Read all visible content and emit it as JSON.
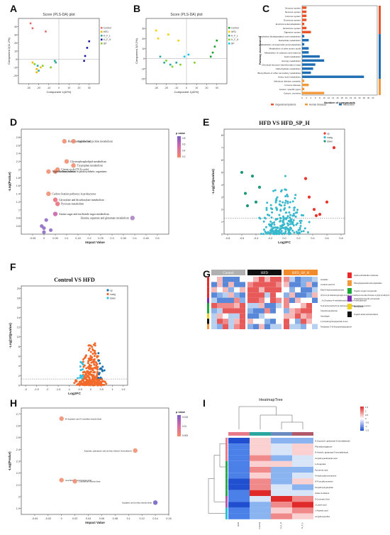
{
  "panel_labels": [
    "A",
    "B",
    "C",
    "D",
    "E",
    "F",
    "G",
    "H",
    "I"
  ],
  "chart_data": [
    {
      "id": "A",
      "type": "scatter",
      "title": "Score (PLS-DA) plot",
      "xlabel": "Component 1(42%)",
      "ylabel": "Component 2(11.2%)",
      "xlim": [
        -40,
        40
      ],
      "ylim": [
        -30,
        50
      ],
      "xticks": [
        "-30",
        "-20",
        "-10",
        "0",
        "10",
        "20",
        "30"
      ],
      "yticks": [
        "40",
        "30",
        "20",
        "10",
        "0",
        "-10",
        "-20"
      ],
      "legend": [
        "Control",
        "HFD",
        "H_F_L",
        "H_F_H",
        "SP"
      ],
      "colors": [
        "#e36b6b",
        "#f5b800",
        "#2aa7a0",
        "#1a1aa0",
        "#7fcf2b"
      ],
      "series": [
        {
          "name": "Control",
          "points": [
            [
              -28,
              44
            ],
            [
              -26,
              38
            ],
            [
              -13,
              34
            ]
          ]
        },
        {
          "name": "HFD",
          "points": [
            [
              -26,
              -4
            ],
            [
              -22,
              -12
            ],
            [
              -18,
              -10
            ],
            [
              -22,
              -16
            ]
          ]
        },
        {
          "name": "H_F_L",
          "points": [
            [
              -21,
              -8
            ],
            [
              -20,
              -14
            ],
            [
              -4,
              -2
            ],
            [
              -3,
              -4
            ]
          ]
        },
        {
          "name": "H_F_H",
          "points": [
            [
              28,
              14
            ],
            [
              30,
              22
            ],
            [
              26,
              4
            ],
            [
              25,
              -2
            ]
          ]
        },
        {
          "name": "SP",
          "points": [
            [
              -24,
              -6
            ],
            [
              -16,
              -8
            ],
            [
              -8,
              -10
            ]
          ]
        }
      ]
    },
    {
      "id": "B",
      "type": "scatter",
      "title": "Score (PLS-DA) plot",
      "xlabel": "Component 1(42%)",
      "ylabel": "Component 2(9.2%)",
      "xlim": [
        -40,
        40
      ],
      "ylim": [
        -25,
        40
      ],
      "xticks": [
        "-30",
        "-20",
        "-10",
        "0",
        "10",
        "20",
        "30"
      ],
      "yticks": [
        "30",
        "20",
        "10",
        "0",
        "-10",
        "-20"
      ],
      "legend": [
        "Control",
        "HFD",
        "H_F_L",
        "H_F_H",
        "SP"
      ],
      "colors": [
        "#1a9e2a",
        "#f5d000",
        "#2aa7a0",
        "#7fcf2b",
        "#00c8e8"
      ],
      "series": [
        {
          "name": "Control",
          "points": [
            [
              28,
              12
            ],
            [
              30,
              18
            ],
            [
              26,
              6
            ],
            [
              24,
              2
            ]
          ]
        },
        {
          "name": "HFD",
          "points": [
            [
              -30,
              28
            ],
            [
              -28,
              20
            ],
            [
              -18,
              24
            ],
            [
              -8,
              18
            ]
          ]
        },
        {
          "name": "H_F_L",
          "points": [
            [
              -26,
              2
            ],
            [
              -22,
              -4
            ],
            [
              -16,
              -6
            ],
            [
              -10,
              -4
            ]
          ]
        },
        {
          "name": "H_F_H",
          "points": [
            [
              -20,
              -2
            ],
            [
              -14,
              -8
            ],
            [
              -6,
              -6
            ],
            [
              8,
              -4
            ]
          ]
        },
        {
          "name": "SP",
          "points": [
            [
              -2,
              2
            ],
            [
              2,
              4
            ]
          ]
        }
      ]
    },
    {
      "id": "C",
      "type": "bar",
      "orientation": "horizontal",
      "xlabel": "Number of compounds",
      "ylabel": "Pathway classification",
      "xlim": [
        0,
        34
      ],
      "xticks": [
        "0",
        "2",
        "4",
        "6",
        "8",
        "10",
        "12",
        "14",
        "16",
        "18",
        "20",
        "22",
        "24",
        "26",
        "28",
        "30",
        "32"
      ],
      "legend": [
        "Organismal Systems",
        "Human Diseases",
        "Metabolism"
      ],
      "colors": {
        "Organismal Systems": "#e8542a",
        "Human Diseases": "#f29a3a",
        "Metabolism": "#1f6eb4"
      },
      "group_bars_by_category": true,
      "categories": [
        "Sensory system",
        "Nervous system",
        "Immune system",
        "Excretory system",
        "Environmental adaptation",
        "Endocrine system",
        "Digestive system",
        "Xenobiotics biodegradation and metabolism",
        "Nucleotide metabolism",
        "Metabolism of terpenoids and polyketides",
        "Metabolism of other amino acids",
        "Metabolism of cofactors and vitamins",
        "Lipid metabolism",
        "Energy metabolism",
        "Chemical structure transformation maps",
        "Carbohydrate metabolism",
        "Biosynthesis of other secondary metabolites",
        "Amino acid metabolism",
        "Infectious disease: parasitic",
        "Immune disease",
        "Cancer: specific types",
        "Cancer: overview"
      ],
      "groups": [
        "Organismal Systems",
        "Organismal Systems",
        "Organismal Systems",
        "Organismal Systems",
        "Organismal Systems",
        "Organismal Systems",
        "Organismal Systems",
        "Metabolism",
        "Metabolism",
        "Metabolism",
        "Metabolism",
        "Metabolism",
        "Metabolism",
        "Metabolism",
        "Metabolism",
        "Metabolism",
        "Metabolism",
        "Metabolism",
        "Human Diseases",
        "Human Diseases",
        "Human Diseases",
        "Human Diseases"
      ],
      "values": [
        2,
        2,
        2,
        2,
        1,
        2,
        4,
        1,
        3,
        1,
        3,
        3,
        8,
        10,
        6,
        5,
        4,
        28,
        1,
        3,
        1,
        10
      ]
    },
    {
      "id": "D",
      "type": "scatter",
      "subtype": "pathway-bubble",
      "xlabel": "Impact Value",
      "ylabel": "-Log(Pvalue)",
      "xlim": [
        -0.1,
        0.55
      ],
      "ylim": [
        0.4,
        3.0
      ],
      "xticks": [
        "-0.05",
        "0",
        "0.05",
        "0.1",
        "0.15",
        "0.2",
        "0.25",
        "0.3",
        "0.35",
        "0.4",
        "0.45",
        "0.5"
      ],
      "yticks": [
        "2.8",
        "2.6",
        "2.4",
        "2.2",
        "2",
        "1.8",
        "1.6",
        "1.4",
        "1.2",
        "1",
        "0.8",
        "0.6"
      ],
      "legend_title": "p value",
      "legend_ticks": [
        "0.8",
        "0.6",
        "0.4",
        "0.2"
      ],
      "points": [
        {
          "label": "Histidine metabolism",
          "x": 0.09,
          "y": 2.7,
          "color": "#f08a6a"
        },
        {
          "label": "Arginine and proline metabolism",
          "x": 0.13,
          "y": 2.7,
          "color": "#f08a6a"
        },
        {
          "label": "Glycerophospholipid metabolism",
          "x": 0.1,
          "y": 2.2,
          "color": "#f08a6a"
        },
        {
          "label": "Tryptophan metabolism",
          "x": 0.13,
          "y": 2.1,
          "color": "#f08a6a"
        },
        {
          "label": "Citrate cycle (TCA cycle)",
          "x": 0.06,
          "y": 2.0,
          "color": "#f08a6a"
        },
        {
          "label": "Carbon fixation in photosynthetic organisms",
          "x": 0.05,
          "y": 1.95,
          "color": "#f08a6a"
        },
        {
          "label": "Arginine biosynthesis",
          "x": 0.02,
          "y": 1.95,
          "color": "#f08a6a"
        },
        {
          "label": "Carbon fixation pathways in prokaryotes",
          "x": 0.02,
          "y": 1.4,
          "color": "#f08a6a"
        },
        {
          "label": "Glyoxylate and dicarboxylate metabolism",
          "x": 0.05,
          "y": 1.25,
          "color": "#e86a78"
        },
        {
          "label": "Pyruvate metabolism",
          "x": 0.06,
          "y": 1.15,
          "color": "#e86a78"
        },
        {
          "label": "Amino sugar and nucleotide sugar metabolism",
          "x": 0.05,
          "y": 0.9,
          "color": "#c45aa0"
        },
        {
          "label": "Alanine, aspartate and glutamate metabolism",
          "x": 0.39,
          "y": 0.8,
          "color": "#a77cbf"
        },
        {
          "label": "",
          "x": 0.01,
          "y": 0.75,
          "color": "#8a64c0"
        },
        {
          "label": "",
          "x": -0.01,
          "y": 0.6,
          "color": "#8a64c0"
        },
        {
          "label": "",
          "x": 0.0,
          "y": 0.55,
          "color": "#8a64c0"
        },
        {
          "label": "",
          "x": 0.03,
          "y": 0.5,
          "color": "#8a64c0"
        },
        {
          "label": "",
          "x": 0.0,
          "y": 0.45,
          "color": "#8a64c0"
        }
      ]
    },
    {
      "id": "E",
      "type": "scatter",
      "subtype": "volcano",
      "title": "HFD VS HFD_SP_H",
      "xlabel": "Log2FC",
      "ylabel": "-Log(10)pvalue)",
      "xlim": [
        -0.85,
        0.85
      ],
      "ylim": [
        0,
        8.5
      ],
      "xticks": [
        "-0.8",
        "-0.6",
        "-0.4",
        "-0.2",
        "0.0",
        "0.2",
        "0.4",
        "0.6",
        "0.8"
      ],
      "yticks": [
        "8",
        "7",
        "6",
        "5",
        "4",
        "3",
        "2",
        "1",
        "0"
      ],
      "legend": [
        "up",
        "nosig",
        "down"
      ],
      "colors": {
        "up": "#e8342a",
        "nosig": "#38b8cc",
        "down": "#1a9a78"
      },
      "threshold_y": 1.3,
      "up": [
        [
          0.7,
          7.0
        ],
        [
          0.6,
          2.6
        ],
        [
          0.5,
          1.6
        ],
        [
          0.42,
          2.0
        ],
        [
          0.35,
          3.0
        ],
        [
          0.3,
          4.5
        ],
        [
          0.45,
          1.5
        ]
      ],
      "down": [
        [
          -0.6,
          5.0
        ],
        [
          -0.55,
          3.3
        ],
        [
          -0.45,
          4.7
        ],
        [
          -0.4,
          2.6
        ],
        [
          -0.52,
          2.3
        ],
        [
          -0.35,
          3.8
        ]
      ]
    },
    {
      "id": "F",
      "type": "scatter",
      "subtype": "volcano",
      "title": "Control VS HFD",
      "xlabel": "Log2FC",
      "ylabel": "-Log(10)pvalue)",
      "xlim": [
        -3.2,
        1.7
      ],
      "ylim": [
        0,
        20.5
      ],
      "xticks": [
        "-3",
        "-2.5",
        "-2",
        "-1.5",
        "-1",
        "-0.5",
        "0",
        "0.5",
        "1",
        "1.5"
      ],
      "yticks": [
        "20",
        "18",
        "16",
        "14",
        "12",
        "10",
        "8",
        "6",
        "4",
        "2",
        "0"
      ],
      "legend": [
        "up",
        "nosig",
        "down"
      ],
      "colors": {
        "up": "#1a6fb0",
        "nosig": "#f26a2a",
        "down": "#38c0e0"
      },
      "threshold_y": 1.3
    },
    {
      "id": "G",
      "type": "heatmap",
      "groups": [
        "Control",
        "HFD",
        "HFD_SP_H"
      ],
      "group_colors": [
        "#b0b0b0",
        "#111111",
        "#f08a2a"
      ],
      "rows": [
        "Amelletin",
        "Linolenic acid 3.6",
        "Ethyl-3-hydroxydodecanoate",
        "(3,5,2-2-(2-Isobutoxypropyl)-3-methyl-2-methyl-4-oxo-2H-chromen-2-yl)(2-(2-ethyl)-2-(2-Amino-5)",
        "...6-(2-hydroxy-4-methylbenzyl)methoxy-4-methylbenzyl)",
        "N-(4-aminomethyl-5-(2-methoxyphenyl)phenyl)glycyl-2-amino...",
        "3-Hydroxytryptamine",
        "Ascorbigen",
        "1-(4-hydroxyphenyl)pentan-3-one",
        "Tetrahydro-3'-(3-fluorophenyl)pyrazine"
      ],
      "legend": [
        "Lipids and lipid-like molecules",
        "Phenylpropanoids and polyketides",
        "Organic oxygen compounds",
        "Organoheterocyclic compounds",
        "Benzenoids",
        "Organic acids and derivatives"
      ],
      "legend_colors": [
        "#e82a2a",
        "#f29a3a",
        "#1aa838",
        "#7a2ab0",
        "#f0d020",
        "#111111"
      ]
    },
    {
      "id": "H",
      "type": "scatter",
      "subtype": "pathway-bubble",
      "xlabel": "Impact Value",
      "ylabel": "-Log(Pvalue)",
      "xlim": [
        -0.06,
        0.16
      ],
      "ylim": [
        1.85,
        2.75
      ],
      "xticks": [
        "-0.04",
        "-0.02",
        "0",
        "0.02",
        "0.04",
        "0.06",
        "0.08",
        "0.1",
        "0.12",
        "0.14",
        "0.16"
      ],
      "yticks": [
        "2.7",
        "2.6",
        "2.5",
        "2.4",
        "2.3",
        "2.2",
        "2.1",
        "2",
        "1.9"
      ],
      "legend_title": "p value",
      "legend_ticks": [
        "0.015",
        "0.01",
        "0.005"
      ],
      "points": [
        {
          "label": "D-Arginine and D-ornithine metabolism",
          "x": 0.0,
          "y": 2.66,
          "color": "#f08a6a"
        },
        {
          "label": "Arachidonic acid metabolism",
          "x": 0.0,
          "y": 2.14,
          "color": "#f08a6a"
        },
        {
          "label": "Glutathione metabolism",
          "x": 0.02,
          "y": 2.13,
          "color": "#f08a6a"
        },
        {
          "label": "Arginine, glutamate and proline ethanol biosynthesis",
          "x": 0.11,
          "y": 2.39,
          "color": "#f08a6a"
        },
        {
          "label": "Arginine and proline metabolism",
          "x": 0.14,
          "y": 1.95,
          "color": "#6a5ac0"
        }
      ]
    },
    {
      "id": "I",
      "type": "heatmap",
      "title": "HeatmapTree",
      "columns": [
        "HFD",
        "Control",
        "H_F_H",
        "H_F_L"
      ],
      "rows": [
        "N-Succinyl-L-glutamate-5-semialdehyde",
        "Phenylacetylglycine",
        "N-Acetyl-L-glutamate-5-semialdehyde",
        "3-Hydroxyanthranilic acid",
        "L-Arogenate",
        "Kynurenic acid",
        "3-Hydroxykynurenamine",
        "N'-Formylkynurenine",
        "5-Hydroxytryptophan",
        "Indole-3-ethanol",
        "5-Coumaric Acid",
        "L-Lysine acid",
        "L-Aspartic acid",
        "α-Hydroxyproline"
      ],
      "legend_ticks": [
        "1.5",
        "1",
        "0.5",
        "0",
        "-0.5",
        "-1",
        "-1.5"
      ]
    }
  ]
}
